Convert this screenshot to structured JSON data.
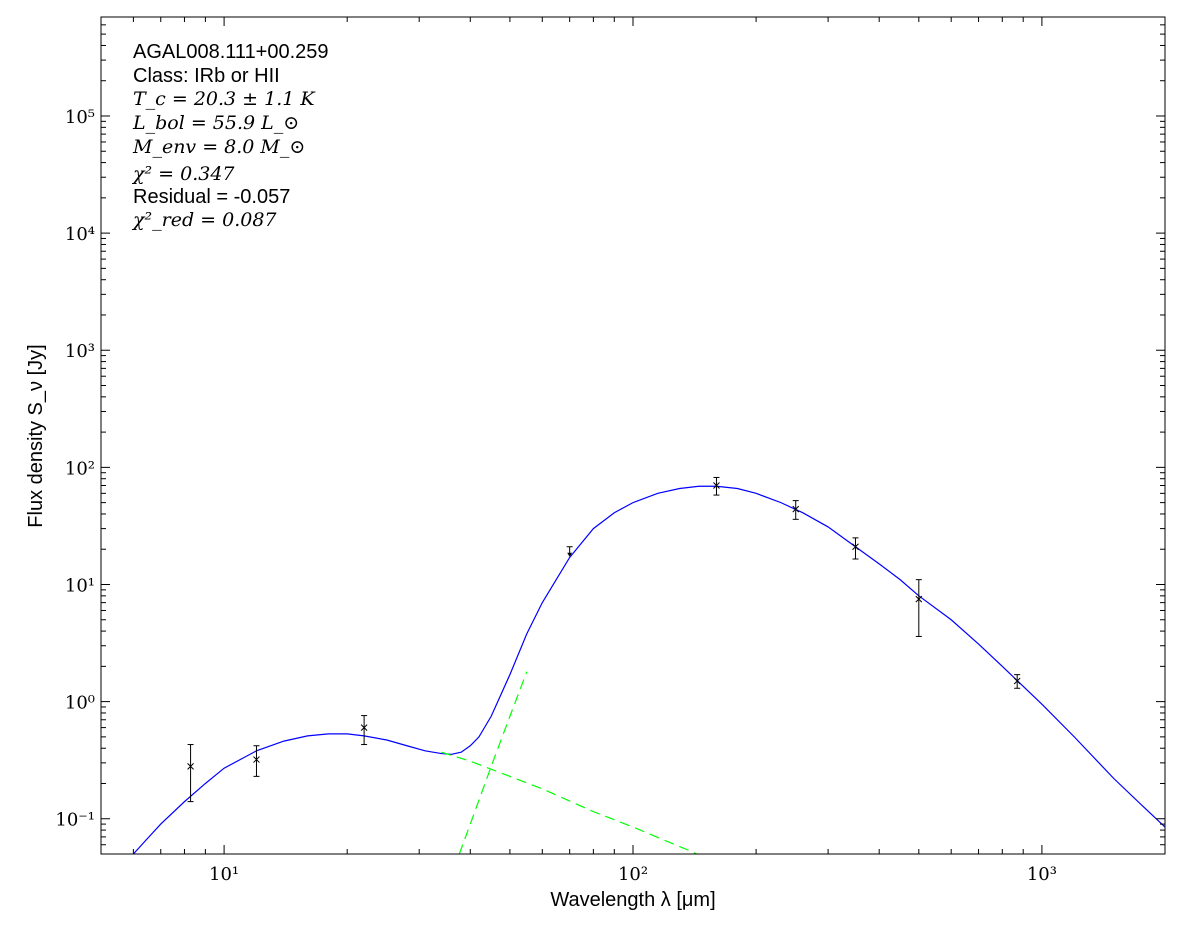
{
  "chart_data": {
    "type": "scatter",
    "title": "",
    "xlabel": "Wavelength λ [μm]",
    "ylabel": "Flux density S_ν [Jy]",
    "xscale": "log",
    "yscale": "log",
    "xlim": [
      5,
      2000
    ],
    "ylim": [
      0.05,
      700000
    ],
    "grid": false,
    "legend": "none",
    "x_tick_labels": [
      "10¹",
      "10²",
      "10³"
    ],
    "y_tick_labels": [
      "10⁻¹",
      "10⁰",
      "10¹",
      "10²",
      "10³",
      "10⁴",
      "10⁵"
    ],
    "annotations": {
      "source": "AGAL008.111+00.259",
      "class": "Class: IRb or HII",
      "tc": "T_c = 20.3 ± 1.1 K",
      "lbol": "L_bol = 55.9 L_⊙",
      "menv": "M_env = 8.0 M_⊙",
      "chi2": "χ² = 0.347",
      "residual": "Residual = -0.057",
      "chi2_red": "χ²_red = 0.087"
    },
    "data_points": [
      {
        "x": 8.28,
        "y": 0.28,
        "err": [
          0.14,
          0.43
        ]
      },
      {
        "x": 12.0,
        "y": 0.32,
        "err": [
          0.23,
          0.42
        ]
      },
      {
        "x": 22.0,
        "y": 0.6,
        "err": [
          0.43,
          0.76
        ]
      },
      {
        "x": 160,
        "y": 70,
        "err": [
          58,
          82
        ]
      },
      {
        "x": 250,
        "y": 44,
        "err": [
          36,
          52
        ]
      },
      {
        "x": 350,
        "y": 21,
        "err": [
          16.5,
          25
        ]
      },
      {
        "x": 500,
        "y": 7.5,
        "err": [
          3.6,
          11
        ]
      },
      {
        "x": 870,
        "y": 1.5,
        "err": [
          1.3,
          1.7
        ]
      }
    ],
    "upper_limits": [
      {
        "x": 70,
        "y": 21
      }
    ],
    "series": [
      {
        "role": "total-fit",
        "color": "#0000ff",
        "points": [
          [
            6.0,
            0.05
          ],
          [
            6.5,
            0.068
          ],
          [
            7,
            0.09
          ],
          [
            8,
            0.14
          ],
          [
            9,
            0.2
          ],
          [
            10,
            0.27
          ],
          [
            12,
            0.38
          ],
          [
            14,
            0.46
          ],
          [
            16,
            0.51
          ],
          [
            18,
            0.53
          ],
          [
            20,
            0.53
          ],
          [
            22,
            0.51
          ],
          [
            25,
            0.47
          ],
          [
            28,
            0.42
          ],
          [
            31,
            0.38
          ],
          [
            34,
            0.36
          ],
          [
            36,
            0.355
          ],
          [
            38,
            0.37
          ],
          [
            40,
            0.42
          ],
          [
            42,
            0.5
          ],
          [
            45,
            0.75
          ],
          [
            50,
            1.7
          ],
          [
            55,
            3.8
          ],
          [
            60,
            7
          ],
          [
            70,
            17
          ],
          [
            80,
            30
          ],
          [
            90,
            41
          ],
          [
            100,
            50
          ],
          [
            115,
            60
          ],
          [
            130,
            66
          ],
          [
            145,
            69
          ],
          [
            160,
            69
          ],
          [
            180,
            66
          ],
          [
            200,
            60
          ],
          [
            230,
            50
          ],
          [
            260,
            41
          ],
          [
            300,
            31
          ],
          [
            350,
            21
          ],
          [
            400,
            15
          ],
          [
            450,
            11
          ],
          [
            500,
            8
          ],
          [
            600,
            5
          ],
          [
            700,
            3.1
          ],
          [
            800,
            2.0
          ],
          [
            900,
            1.35
          ],
          [
            1000,
            0.95
          ],
          [
            1200,
            0.5
          ],
          [
            1500,
            0.22
          ],
          [
            1800,
            0.12
          ],
          [
            2000,
            0.085
          ]
        ]
      },
      {
        "role": "warm-component",
        "color": "#00ff00",
        "points": [
          [
            34,
            0.37
          ],
          [
            40,
            0.31
          ],
          [
            50,
            0.23
          ],
          [
            60,
            0.18
          ],
          [
            80,
            0.115
          ],
          [
            100,
            0.085
          ],
          [
            120,
            0.065
          ],
          [
            140,
            0.052
          ],
          [
            150,
            0.046
          ]
        ]
      },
      {
        "role": "cold-component",
        "color": "#00ff00",
        "points": [
          [
            37.6,
            0.05
          ],
          [
            40,
            0.09
          ],
          [
            45,
            0.28
          ],
          [
            50,
            0.75
          ],
          [
            55,
            1.8
          ]
        ]
      }
    ]
  }
}
